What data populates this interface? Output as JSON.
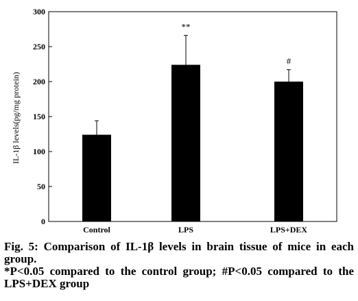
{
  "chart_data": {
    "type": "bar",
    "ylabel": "IL-1β levels(pg/mg protein)",
    "ylim": [
      0,
      300
    ],
    "yticks": [
      0,
      50,
      100,
      150,
      200,
      250,
      300
    ],
    "categories": [
      "Control",
      "LPS",
      "LPS+DEX"
    ],
    "values": [
      124,
      224,
      200
    ],
    "errors": [
      20,
      42,
      17
    ],
    "annotations": [
      "",
      "**",
      "#"
    ],
    "bar_color": "#000000",
    "grid": false
  },
  "caption": {
    "line1": "Fig. 5: Comparison of IL-1β levels in brain tissue of mice in each group.",
    "line2": "*P<0.05 compared to the control group; #P<0.05 compared to the LPS+DEX group"
  }
}
